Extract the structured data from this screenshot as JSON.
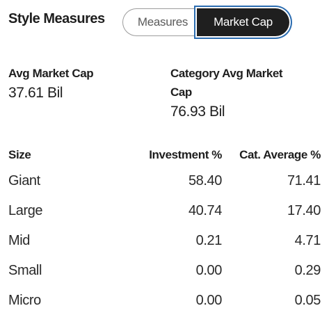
{
  "header": {
    "title": "Style Measures",
    "toggle": {
      "options": [
        "Measures",
        "Market Cap"
      ],
      "selected": "Market Cap"
    }
  },
  "summary": {
    "avg_market_cap": {
      "label": "Avg Market Cap",
      "value": "37.61 Bil"
    },
    "category_avg_market_cap": {
      "label_line1": "Category Avg Market",
      "label_line2": "Cap",
      "value": "76.93 Bil"
    }
  },
  "table": {
    "headers": [
      "Size",
      "Investment %",
      "Cat. Average %"
    ],
    "rows": [
      [
        "Giant",
        "58.40",
        "71.41"
      ],
      [
        "Large",
        "40.74",
        "17.40"
      ],
      [
        "Mid",
        "0.21",
        "4.71"
      ],
      [
        "Small",
        "0.00",
        "0.29"
      ],
      [
        "Micro",
        "0.00",
        "0.05"
      ]
    ]
  },
  "colors": {
    "active_toggle_bg": "#1f1f1f",
    "focus_ring": "#2b6cb0",
    "text": "#1e1e1e"
  }
}
